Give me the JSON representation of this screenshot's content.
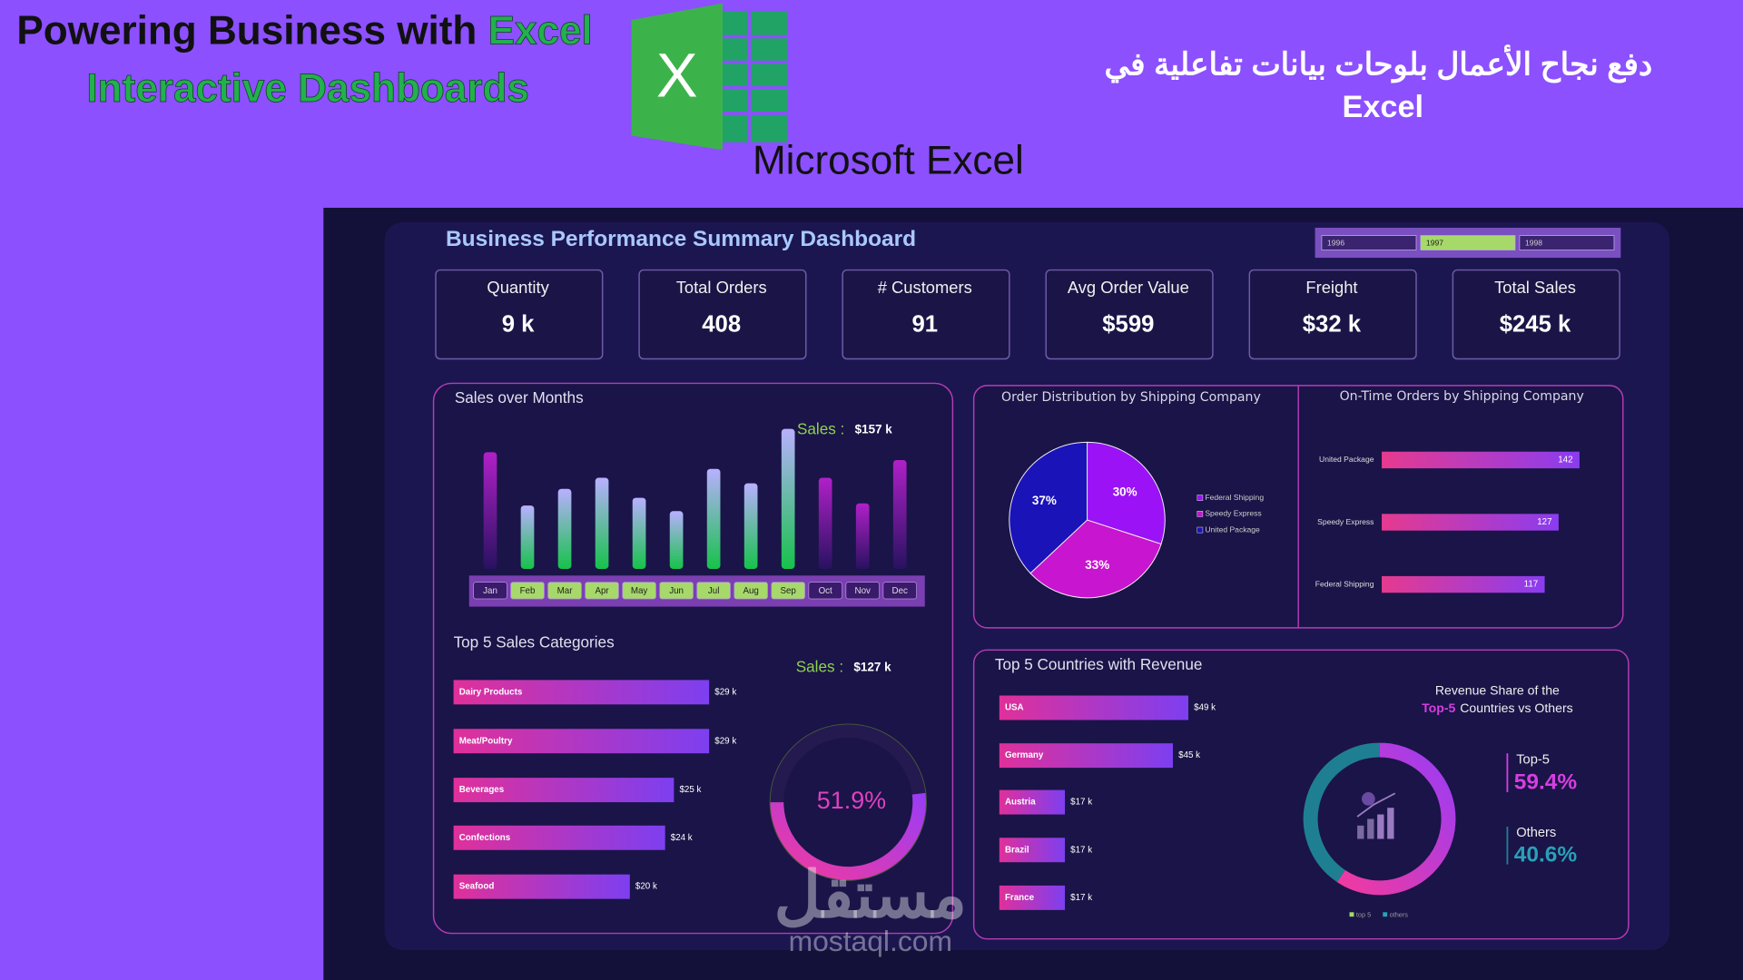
{
  "header": {
    "title": [
      "Powering Business with",
      "Excel",
      "Interactive Dashboards"
    ],
    "logo_letter": "X",
    "logo_label": "Microsoft Excel",
    "arabic_title": [
      "دفع نجاح الأعمال بلوحات بيانات تفاعلية في",
      "Excel"
    ]
  },
  "dashboard": {
    "title": "Business Performance Summary Dashboard",
    "years": [
      "1996",
      "1997",
      "1998"
    ],
    "year_selected": [
      false,
      true,
      false
    ],
    "kpis": [
      {
        "label": "Quantity",
        "value": "9 k"
      },
      {
        "label": "Total Orders",
        "value": "408"
      },
      {
        "label": "# Customers",
        "value": "91"
      },
      {
        "label": "Avg Order Value",
        "value": "$599"
      },
      {
        "label": "Freight",
        "value": "$32 k"
      },
      {
        "label": "Total Sales",
        "value": "$245 k"
      }
    ]
  },
  "chart_data": [
    {
      "type": "column",
      "title": "Sales over Months",
      "categories": [
        "Jan",
        "Feb",
        "Mar",
        "Apr",
        "May",
        "Jun",
        "Jul",
        "Aug",
        "Sep",
        "Oct",
        "Nov",
        "Dec"
      ],
      "values": [
        105,
        57,
        72,
        82,
        64,
        52,
        90,
        77,
        126,
        82,
        59,
        98
      ],
      "highlight": [
        false,
        true,
        true,
        true,
        true,
        true,
        true,
        true,
        true,
        false,
        false,
        false
      ],
      "annotation": {
        "label": "Sales :",
        "value": "$157 k"
      }
    },
    {
      "type": "pie",
      "title": "Order Distribution by Shipping Company",
      "categories": [
        "Federal Shipping",
        "Speedy Express",
        "United Package"
      ],
      "values": [
        30,
        33,
        37
      ],
      "value_labels": [
        "30%",
        "33%",
        "37%"
      ],
      "colors": [
        "#9a12f5",
        "#c815cf",
        "#1a13b8"
      ]
    },
    {
      "type": "hbar",
      "title": "On-Time Orders by Shipping Company",
      "categories": [
        "United Package",
        "Speedy Express",
        "Federal Shipping"
      ],
      "values": [
        142,
        127,
        117
      ]
    },
    {
      "type": "hbar",
      "title": "Top 5 Sales Categories",
      "categories": [
        "Dairy Products",
        "Meat/Poultry",
        "Beverages",
        "Confections",
        "Seafood"
      ],
      "values": [
        29,
        29,
        25,
        24,
        20
      ],
      "value_labels": [
        "$29 k",
        "$29 k",
        "$25 k",
        "$24 k",
        "$20 k"
      ],
      "annotation": {
        "label": "Sales :",
        "value": "$127 k"
      }
    },
    {
      "type": "donut",
      "values": [
        51.9
      ],
      "value_labels": [
        "51.9%"
      ]
    },
    {
      "type": "hbar",
      "title": "Top 5 Countries with Revenue",
      "categories": [
        "USA",
        "Germany",
        "Austria",
        "Brazil",
        "France"
      ],
      "values": [
        49,
        45,
        17,
        17,
        17
      ],
      "value_labels": [
        "$49 k",
        "$45 k",
        "$17 k",
        "$17 k",
        "$17 k"
      ]
    },
    {
      "type": "donut",
      "title": [
        "Revenue Share of the",
        "Top-5",
        "Countries vs Others"
      ],
      "categories": [
        "Top-5",
        "Others"
      ],
      "values": [
        59.4,
        40.6
      ],
      "value_labels": [
        "59.4%",
        "40.6%"
      ],
      "legend_labels": [
        "top 5",
        "others"
      ],
      "colors": [
        "#d63ee0",
        "#1f7f92"
      ]
    }
  ],
  "watermark": {
    "arabic": "مستقل",
    "latin": "mostaql.com"
  }
}
